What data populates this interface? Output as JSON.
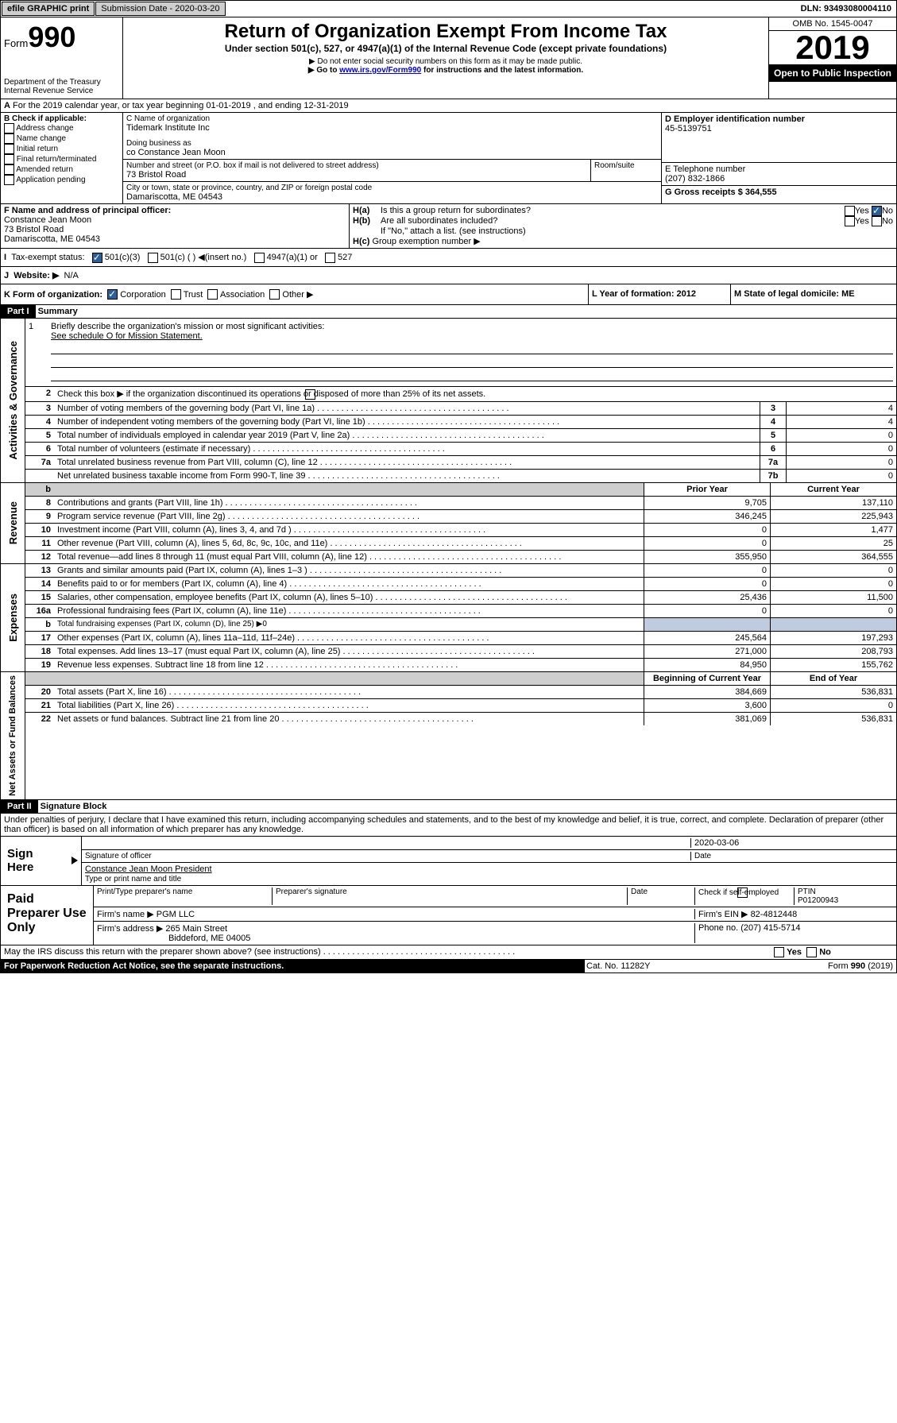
{
  "topbar": {
    "efile": "efile GRAPHIC print",
    "sub_label": "Submission Date - 2020-03-20",
    "dln": "DLN: 93493080004110"
  },
  "header": {
    "form_word": "Form",
    "form_num": "990",
    "dept": "Department of the Treasury",
    "irs": "Internal Revenue Service",
    "title": "Return of Organization Exempt From Income Tax",
    "subtitle": "Under section 501(c), 527, or 4947(a)(1) of the Internal Revenue Code (except private foundations)",
    "note1": "▶ Do not enter social security numbers on this form as it may be made public.",
    "note2_pre": "▶ Go to ",
    "note2_link": "www.irs.gov/Form990",
    "note2_post": " for instructions and the latest information.",
    "omb": "OMB No. 1545-0047",
    "year": "2019",
    "open": "Open to Public Inspection"
  },
  "A": {
    "text": "For the 2019 calendar year, or tax year beginning 01-01-2019   , and ending 12-31-2019"
  },
  "B": {
    "label": "B Check if applicable:",
    "items": [
      "Address change",
      "Name change",
      "Initial return",
      "Final return/terminated",
      "Amended return",
      "Application pending"
    ]
  },
  "C": {
    "name_lbl": "C Name of organization",
    "name": "Tidemark Institute Inc",
    "dba_lbl": "Doing business as",
    "dba": "co Constance Jean Moon",
    "addr_lbl": "Number and street (or P.O. box if mail is not delivered to street address)",
    "room_lbl": "Room/suite",
    "addr": "73 Bristol Road",
    "city_lbl": "City or town, state or province, country, and ZIP or foreign postal code",
    "city": "Damariscotta, ME  04543"
  },
  "D": {
    "lbl": "D Employer identification number",
    "val": "45-5139751"
  },
  "E": {
    "lbl": "E Telephone number",
    "val": "(207) 832-1866"
  },
  "G": {
    "lbl": "G Gross receipts $ 364,555"
  },
  "F": {
    "lbl": "F  Name and address of principal officer:",
    "name": "Constance Jean Moon",
    "addr": "73 Bristol Road",
    "city": "Damariscotta, ME  04543"
  },
  "H": {
    "a": "Is this a group return for subordinates?",
    "b": "Are all subordinates included?",
    "bnote": "If \"No,\" attach a list. (see instructions)",
    "c": "Group exemption number ▶"
  },
  "I": {
    "lbl": "Tax-exempt status:",
    "opts": [
      "501(c)(3)",
      "501(c) (  ) ◀(insert no.)",
      "4947(a)(1) or",
      "527"
    ]
  },
  "J": {
    "lbl": "Website: ▶",
    "val": "N/A"
  },
  "K": {
    "lbl": "K Form of organization:",
    "opts": [
      "Corporation",
      "Trust",
      "Association",
      "Other ▶"
    ]
  },
  "L": {
    "lbl": "L Year of formation: 2012"
  },
  "M": {
    "lbl": "M State of legal domicile: ME"
  },
  "part1": {
    "bar": "Part I",
    "title": "Summary"
  },
  "governance": {
    "side": "Activities & Governance",
    "l1": "Briefly describe the organization's mission or most significant activities:",
    "l1v": "See schedule O for Mission Statement.",
    "l2": "Check this box ▶       if the organization discontinued its operations or disposed of more than 25% of its net assets.",
    "l3": "Number of voting members of the governing body (Part VI, line 1a)",
    "l4": "Number of independent voting members of the governing body (Part VI, line 1b)",
    "l5": "Total number of individuals employed in calendar year 2019 (Part V, line 2a)",
    "l6": "Total number of volunteers (estimate if necessary)",
    "l7a": "Total unrelated business revenue from Part VIII, column (C), line 12",
    "l7b": "Net unrelated business taxable income from Form 990-T, line 39",
    "v3": "4",
    "v4": "4",
    "v5": "0",
    "v6": "0",
    "v7a": "0",
    "v7b": "0"
  },
  "revenue": {
    "side": "Revenue",
    "prior": "Prior Year",
    "current": "Current Year",
    "rows": [
      {
        "n": "8",
        "d": "Contributions and grants (Part VIII, line 1h)",
        "p": "9,705",
        "c": "137,110"
      },
      {
        "n": "9",
        "d": "Program service revenue (Part VIII, line 2g)",
        "p": "346,245",
        "c": "225,943"
      },
      {
        "n": "10",
        "d": "Investment income (Part VIII, column (A), lines 3, 4, and 7d )",
        "p": "0",
        "c": "1,477"
      },
      {
        "n": "11",
        "d": "Other revenue (Part VIII, column (A), lines 5, 6d, 8c, 9c, 10c, and 11e)",
        "p": "0",
        "c": "25"
      },
      {
        "n": "12",
        "d": "Total revenue—add lines 8 through 11 (must equal Part VIII, column (A), line 12)",
        "p": "355,950",
        "c": "364,555"
      }
    ]
  },
  "expenses": {
    "side": "Expenses",
    "rows": [
      {
        "n": "13",
        "d": "Grants and similar amounts paid (Part IX, column (A), lines 1–3 )",
        "p": "0",
        "c": "0"
      },
      {
        "n": "14",
        "d": "Benefits paid to or for members (Part IX, column (A), line 4)",
        "p": "0",
        "c": "0"
      },
      {
        "n": "15",
        "d": "Salaries, other compensation, employee benefits (Part IX, column (A), lines 5–10)",
        "p": "25,436",
        "c": "11,500"
      },
      {
        "n": "16a",
        "d": "Professional fundraising fees (Part IX, column (A), line 11e)",
        "p": "0",
        "c": "0"
      },
      {
        "n": "b",
        "d": "Total fundraising expenses (Part IX, column (D), line 25) ▶0",
        "p": "",
        "c": "",
        "shade": true
      },
      {
        "n": "17",
        "d": "Other expenses (Part IX, column (A), lines 11a–11d, 11f–24e)",
        "p": "245,564",
        "c": "197,293"
      },
      {
        "n": "18",
        "d": "Total expenses. Add lines 13–17 (must equal Part IX, column (A), line 25)",
        "p": "271,000",
        "c": "208,793"
      },
      {
        "n": "19",
        "d": "Revenue less expenses. Subtract line 18 from line 12",
        "p": "84,950",
        "c": "155,762"
      }
    ]
  },
  "netassets": {
    "side": "Net Assets or Fund Balances",
    "begin": "Beginning of Current Year",
    "end": "End of Year",
    "rows": [
      {
        "n": "20",
        "d": "Total assets (Part X, line 16)",
        "p": "384,669",
        "c": "536,831"
      },
      {
        "n": "21",
        "d": "Total liabilities (Part X, line 26)",
        "p": "3,600",
        "c": "0"
      },
      {
        "n": "22",
        "d": "Net assets or fund balances. Subtract line 21 from line 20",
        "p": "381,069",
        "c": "536,831"
      }
    ]
  },
  "part2": {
    "bar": "Part II",
    "title": "Signature Block"
  },
  "perjury": "Under penalties of perjury, I declare that I have examined this return, including accompanying schedules and statements, and to the best of my knowledge and belief, it is true, correct, and complete. Declaration of preparer (other than officer) is based on all information of which preparer has any knowledge.",
  "sign": {
    "side": "Sign Here",
    "date": "2020-03-06",
    "sig_lbl": "Signature of officer",
    "date_lbl": "Date",
    "name": "Constance Jean Moon  President",
    "name_lbl": "Type or print name and title"
  },
  "prep": {
    "side": "Paid Preparer Use Only",
    "h1": "Print/Type preparer's name",
    "h2": "Preparer's signature",
    "h3": "Date",
    "h4": "Check       if self-employed",
    "h5": "PTIN",
    "ptin": "P01200943",
    "firm_lbl": "Firm's name   ▶",
    "firm": "PGM LLC",
    "ein_lbl": "Firm's EIN ▶",
    "ein": "82-4812448",
    "addr_lbl": "Firm's address ▶",
    "addr": "265 Main Street",
    "addr2": "Biddeford, ME  04005",
    "phone_lbl": "Phone no. (207) 415-5714"
  },
  "discuss": "May the IRS discuss this return with the preparer shown above? (see instructions)",
  "footer": {
    "l": "For Paperwork Reduction Act Notice, see the separate instructions.",
    "m": "Cat. No. 11282Y",
    "r": "Form 990 (2019)"
  }
}
